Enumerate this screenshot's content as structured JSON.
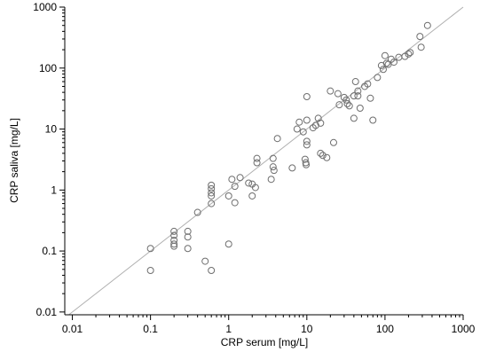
{
  "chart_data": {
    "type": "scatter",
    "title": "",
    "xlabel": "CRP serum [mg/L]",
    "ylabel": "CRP saliva [mg/L]",
    "xscale": "log",
    "yscale": "log",
    "xlim": [
      0.008,
      1000
    ],
    "ylim": [
      0.009,
      1000
    ],
    "xticks": [
      {
        "value": 0.01,
        "label": "0.01"
      },
      {
        "value": 0.1,
        "label": "0.1"
      },
      {
        "value": 1,
        "label": "1"
      },
      {
        "value": 10,
        "label": "10"
      },
      {
        "value": 100,
        "label": "100"
      },
      {
        "value": 1000,
        "label": "1000"
      }
    ],
    "yticks": [
      {
        "value": 0.01,
        "label": "0.01"
      },
      {
        "value": 0.1,
        "label": "0.1"
      },
      {
        "value": 1,
        "label": "1"
      },
      {
        "value": 10,
        "label": "10"
      },
      {
        "value": 100,
        "label": "100"
      },
      {
        "value": 1000,
        "label": "1000"
      }
    ],
    "grid": false,
    "reference_line": {
      "x": [
        0.009,
        1000
      ],
      "y": [
        0.009,
        1000
      ],
      "color": "#b0b0b0"
    },
    "marker_color": "#6e6e6e",
    "points": [
      {
        "x": 0.1,
        "y": 0.11
      },
      {
        "x": 0.1,
        "y": 0.048
      },
      {
        "x": 0.2,
        "y": 0.21
      },
      {
        "x": 0.2,
        "y": 0.18
      },
      {
        "x": 0.2,
        "y": 0.15
      },
      {
        "x": 0.2,
        "y": 0.13
      },
      {
        "x": 0.2,
        "y": 0.12
      },
      {
        "x": 0.3,
        "y": 0.21
      },
      {
        "x": 0.3,
        "y": 0.17
      },
      {
        "x": 0.3,
        "y": 0.11
      },
      {
        "x": 0.4,
        "y": 0.43
      },
      {
        "x": 0.5,
        "y": 0.068
      },
      {
        "x": 0.6,
        "y": 1.2
      },
      {
        "x": 0.6,
        "y": 1.05
      },
      {
        "x": 0.6,
        "y": 0.9
      },
      {
        "x": 0.6,
        "y": 0.8
      },
      {
        "x": 0.6,
        "y": 0.6
      },
      {
        "x": 0.6,
        "y": 0.048
      },
      {
        "x": 1.0,
        "y": 0.8
      },
      {
        "x": 1.0,
        "y": 0.13
      },
      {
        "x": 1.1,
        "y": 1.5
      },
      {
        "x": 1.2,
        "y": 1.15
      },
      {
        "x": 1.2,
        "y": 0.62
      },
      {
        "x": 1.4,
        "y": 1.6
      },
      {
        "x": 1.8,
        "y": 1.3
      },
      {
        "x": 2.0,
        "y": 1.25
      },
      {
        "x": 2.0,
        "y": 0.8
      },
      {
        "x": 2.2,
        "y": 1.1
      },
      {
        "x": 2.3,
        "y": 3.3
      },
      {
        "x": 2.3,
        "y": 2.8
      },
      {
        "x": 3.5,
        "y": 1.5
      },
      {
        "x": 3.7,
        "y": 3.3
      },
      {
        "x": 3.7,
        "y": 2.4
      },
      {
        "x": 3.8,
        "y": 2.1
      },
      {
        "x": 4.2,
        "y": 7.0
      },
      {
        "x": 6.5,
        "y": 2.3
      },
      {
        "x": 7.5,
        "y": 10.0
      },
      {
        "x": 8.0,
        "y": 13.0
      },
      {
        "x": 9.0,
        "y": 9.0
      },
      {
        "x": 9.5,
        "y": 3.2
      },
      {
        "x": 9.7,
        "y": 2.8
      },
      {
        "x": 9.8,
        "y": 2.6
      },
      {
        "x": 10.0,
        "y": 34.0
      },
      {
        "x": 10.0,
        "y": 14.0
      },
      {
        "x": 10.0,
        "y": 6.3
      },
      {
        "x": 10.0,
        "y": 5.5
      },
      {
        "x": 12.0,
        "y": 10.5
      },
      {
        "x": 13.0,
        "y": 11.5
      },
      {
        "x": 14.0,
        "y": 15.0
      },
      {
        "x": 15.0,
        "y": 12.5
      },
      {
        "x": 15.0,
        "y": 4.0
      },
      {
        "x": 16.0,
        "y": 3.7
      },
      {
        "x": 18.0,
        "y": 3.4
      },
      {
        "x": 20.0,
        "y": 42.0
      },
      {
        "x": 22.0,
        "y": 6.0
      },
      {
        "x": 25.0,
        "y": 38.0
      },
      {
        "x": 26.0,
        "y": 25.0
      },
      {
        "x": 30.0,
        "y": 33.0
      },
      {
        "x": 32.0,
        "y": 30.0
      },
      {
        "x": 33.0,
        "y": 26.0
      },
      {
        "x": 35.0,
        "y": 24.0
      },
      {
        "x": 40.0,
        "y": 35.0
      },
      {
        "x": 40.0,
        "y": 15.0
      },
      {
        "x": 42.0,
        "y": 60.0
      },
      {
        "x": 45.0,
        "y": 42.0
      },
      {
        "x": 45.0,
        "y": 35.0
      },
      {
        "x": 48.0,
        "y": 22.0
      },
      {
        "x": 55.0,
        "y": 50.0
      },
      {
        "x": 60.0,
        "y": 55.0
      },
      {
        "x": 65.0,
        "y": 32.0
      },
      {
        "x": 70.0,
        "y": 14.0
      },
      {
        "x": 80.0,
        "y": 70.0
      },
      {
        "x": 90.0,
        "y": 110.0
      },
      {
        "x": 95.0,
        "y": 95.0
      },
      {
        "x": 100.0,
        "y": 160.0
      },
      {
        "x": 105.0,
        "y": 120.0
      },
      {
        "x": 110.0,
        "y": 115.0
      },
      {
        "x": 120.0,
        "y": 140.0
      },
      {
        "x": 130.0,
        "y": 125.0
      },
      {
        "x": 150.0,
        "y": 150.0
      },
      {
        "x": 180.0,
        "y": 155.0
      },
      {
        "x": 200.0,
        "y": 170.0
      },
      {
        "x": 210.0,
        "y": 180.0
      },
      {
        "x": 280.0,
        "y": 330.0
      },
      {
        "x": 290.0,
        "y": 220.0
      },
      {
        "x": 350.0,
        "y": 500.0
      }
    ]
  }
}
